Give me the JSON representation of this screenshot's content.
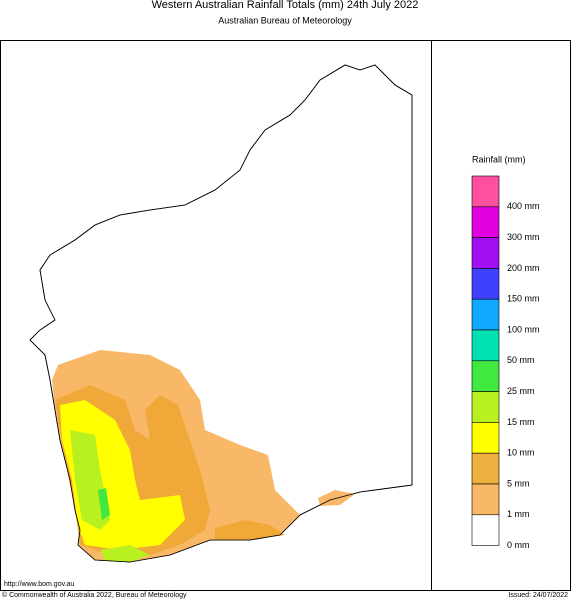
{
  "header": {
    "title": "Western Australian Rainfall Totals (mm) 24th July 2022",
    "subtitle": "Australian Bureau of Meteorology"
  },
  "legend": {
    "title": "Rainfall (mm)",
    "colors": [
      "#ff50a0",
      "#e000e0",
      "#a010f0",
      "#4040ff",
      "#10a8ff",
      "#00e0b0",
      "#40e840",
      "#b8f020",
      "#ffff00",
      "#f0b040",
      "#f8b868",
      "#ffffff"
    ],
    "labels": [
      "400 mm",
      "300 mm",
      "200 mm",
      "150 mm",
      "100 mm",
      "50 mm",
      "25 mm",
      "15 mm",
      "10 mm",
      "5 mm",
      "1 mm",
      "0 mm"
    ]
  },
  "footer": {
    "url": "http://www.bom.gov.au",
    "copyright": "© Commonwealth of Australia 2022, Bureau of Meteorology",
    "issued": "Issued: 24/07/2022"
  }
}
